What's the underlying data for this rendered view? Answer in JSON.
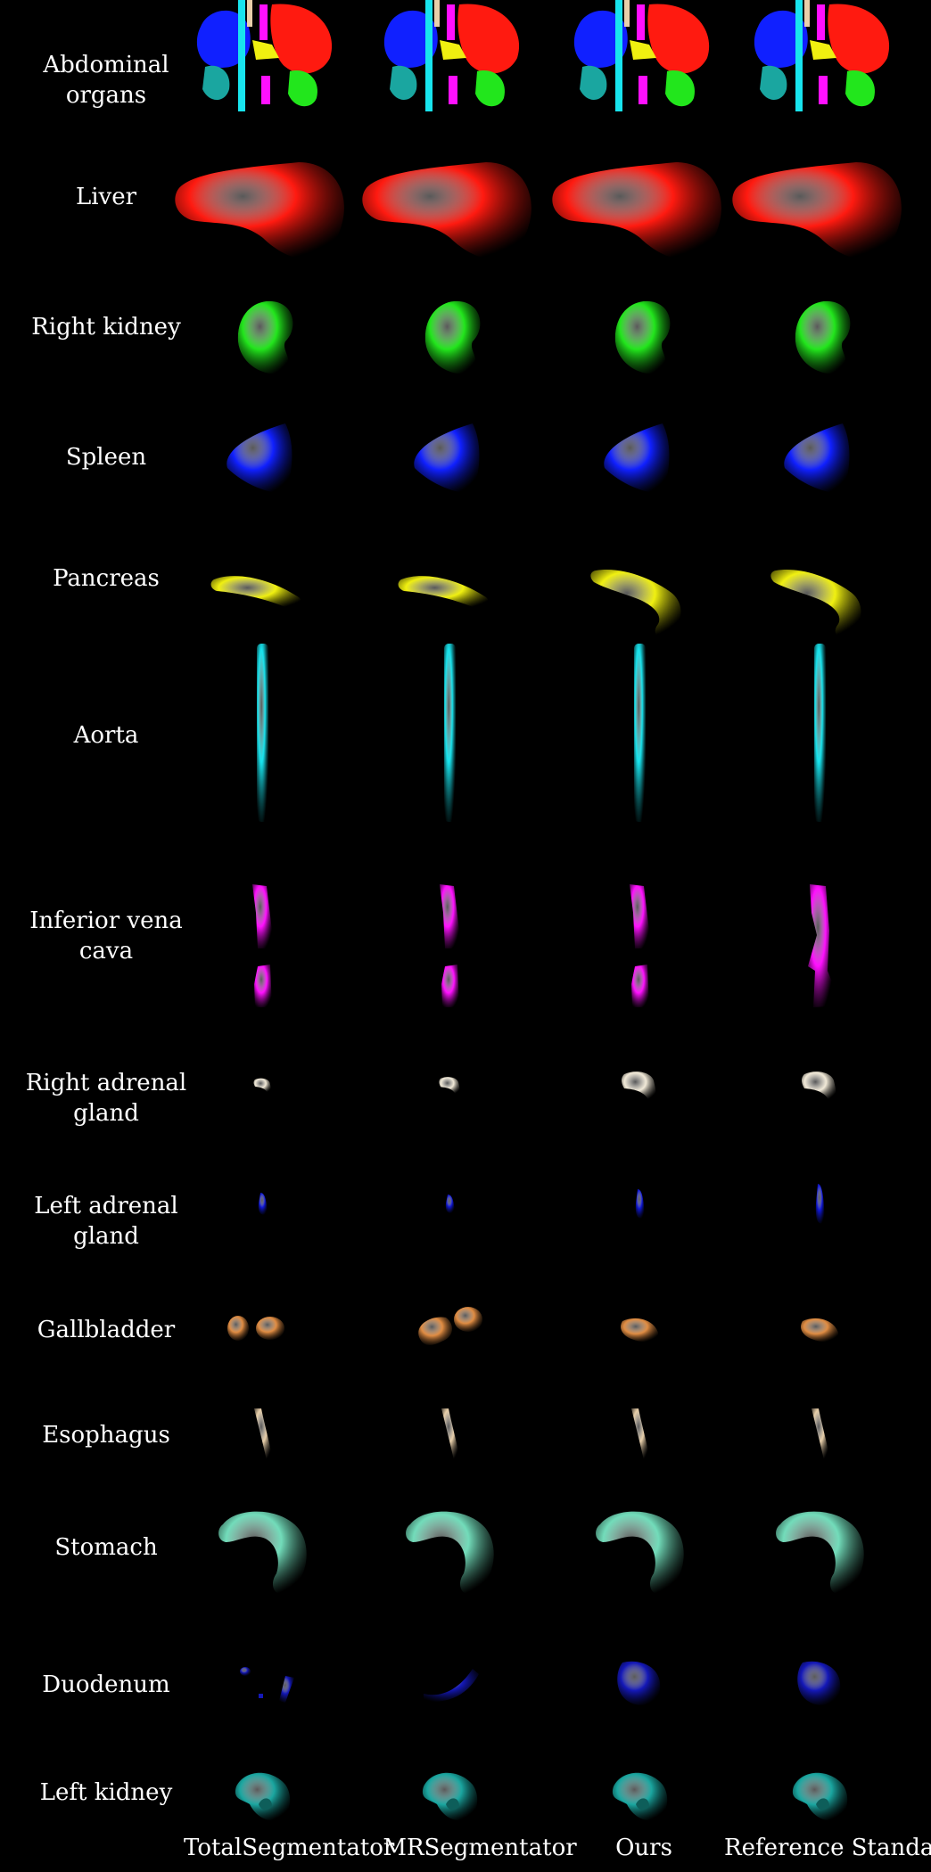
{
  "rows": [
    {
      "label": "Abdominal\norgans"
    },
    {
      "label": "Liver"
    },
    {
      "label": "Right kidney"
    },
    {
      "label": "Spleen"
    },
    {
      "label": "Pancreas"
    },
    {
      "label": "Aorta"
    },
    {
      "label": "Inferior vena cava"
    },
    {
      "label": "Right adrenal gland"
    },
    {
      "label": "Left adrenal gland"
    },
    {
      "label": "Gallbladder"
    },
    {
      "label": "Esophagus"
    },
    {
      "label": "Stomach"
    },
    {
      "label": "Duodenum"
    },
    {
      "label": "Left kidney"
    }
  ],
  "columns": [
    {
      "label": "TotalSegmentator"
    },
    {
      "label": "MRSegmentator"
    },
    {
      "label": "Ours"
    },
    {
      "label": "Reference Standard"
    }
  ],
  "colors": {
    "background": "#000000",
    "liver": "#ff1a10",
    "right_kidney": "#22e61c",
    "spleen": "#1020ff",
    "pancreas": "#f0f010",
    "aorta": "#18e4ee",
    "ivc": "#ff10ff",
    "right_adrenal": "#f2ead8",
    "left_adrenal": "#1018d8",
    "gallbladder": "#e08c42",
    "esophagus": "#e8cfaa",
    "stomach": "#72dcba",
    "duodenum": "#1418b8",
    "left_kidney": "#1aa6a0"
  }
}
